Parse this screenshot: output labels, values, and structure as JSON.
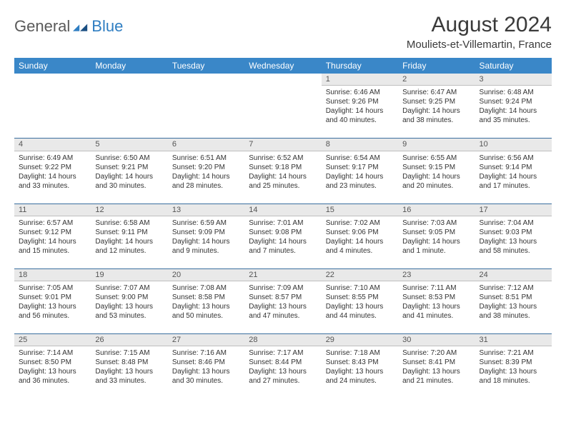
{
  "brand": {
    "part1": "General",
    "part2": "Blue"
  },
  "title": "August 2024",
  "subtitle": "Mouliets-et-Villemartin, France",
  "colors": {
    "header_bg": "#3a87c8",
    "header_text": "#ffffff",
    "daynum_bg": "#e9e9e9",
    "divider": "#3a6f9f",
    "text": "#333333",
    "brand_gray": "#5a5a5a",
    "brand_blue": "#2f7ec2"
  },
  "dayHeaders": [
    "Sunday",
    "Monday",
    "Tuesday",
    "Wednesday",
    "Thursday",
    "Friday",
    "Saturday"
  ],
  "weeks": [
    [
      null,
      null,
      null,
      null,
      {
        "n": "1",
        "sr": "6:46 AM",
        "ss": "9:26 PM",
        "dl": "14 hours and 40 minutes."
      },
      {
        "n": "2",
        "sr": "6:47 AM",
        "ss": "9:25 PM",
        "dl": "14 hours and 38 minutes."
      },
      {
        "n": "3",
        "sr": "6:48 AM",
        "ss": "9:24 PM",
        "dl": "14 hours and 35 minutes."
      }
    ],
    [
      {
        "n": "4",
        "sr": "6:49 AM",
        "ss": "9:22 PM",
        "dl": "14 hours and 33 minutes."
      },
      {
        "n": "5",
        "sr": "6:50 AM",
        "ss": "9:21 PM",
        "dl": "14 hours and 30 minutes."
      },
      {
        "n": "6",
        "sr": "6:51 AM",
        "ss": "9:20 PM",
        "dl": "14 hours and 28 minutes."
      },
      {
        "n": "7",
        "sr": "6:52 AM",
        "ss": "9:18 PM",
        "dl": "14 hours and 25 minutes."
      },
      {
        "n": "8",
        "sr": "6:54 AM",
        "ss": "9:17 PM",
        "dl": "14 hours and 23 minutes."
      },
      {
        "n": "9",
        "sr": "6:55 AM",
        "ss": "9:15 PM",
        "dl": "14 hours and 20 minutes."
      },
      {
        "n": "10",
        "sr": "6:56 AM",
        "ss": "9:14 PM",
        "dl": "14 hours and 17 minutes."
      }
    ],
    [
      {
        "n": "11",
        "sr": "6:57 AM",
        "ss": "9:12 PM",
        "dl": "14 hours and 15 minutes."
      },
      {
        "n": "12",
        "sr": "6:58 AM",
        "ss": "9:11 PM",
        "dl": "14 hours and 12 minutes."
      },
      {
        "n": "13",
        "sr": "6:59 AM",
        "ss": "9:09 PM",
        "dl": "14 hours and 9 minutes."
      },
      {
        "n": "14",
        "sr": "7:01 AM",
        "ss": "9:08 PM",
        "dl": "14 hours and 7 minutes."
      },
      {
        "n": "15",
        "sr": "7:02 AM",
        "ss": "9:06 PM",
        "dl": "14 hours and 4 minutes."
      },
      {
        "n": "16",
        "sr": "7:03 AM",
        "ss": "9:05 PM",
        "dl": "14 hours and 1 minute."
      },
      {
        "n": "17",
        "sr": "7:04 AM",
        "ss": "9:03 PM",
        "dl": "13 hours and 58 minutes."
      }
    ],
    [
      {
        "n": "18",
        "sr": "7:05 AM",
        "ss": "9:01 PM",
        "dl": "13 hours and 56 minutes."
      },
      {
        "n": "19",
        "sr": "7:07 AM",
        "ss": "9:00 PM",
        "dl": "13 hours and 53 minutes."
      },
      {
        "n": "20",
        "sr": "7:08 AM",
        "ss": "8:58 PM",
        "dl": "13 hours and 50 minutes."
      },
      {
        "n": "21",
        "sr": "7:09 AM",
        "ss": "8:57 PM",
        "dl": "13 hours and 47 minutes."
      },
      {
        "n": "22",
        "sr": "7:10 AM",
        "ss": "8:55 PM",
        "dl": "13 hours and 44 minutes."
      },
      {
        "n": "23",
        "sr": "7:11 AM",
        "ss": "8:53 PM",
        "dl": "13 hours and 41 minutes."
      },
      {
        "n": "24",
        "sr": "7:12 AM",
        "ss": "8:51 PM",
        "dl": "13 hours and 38 minutes."
      }
    ],
    [
      {
        "n": "25",
        "sr": "7:14 AM",
        "ss": "8:50 PM",
        "dl": "13 hours and 36 minutes."
      },
      {
        "n": "26",
        "sr": "7:15 AM",
        "ss": "8:48 PM",
        "dl": "13 hours and 33 minutes."
      },
      {
        "n": "27",
        "sr": "7:16 AM",
        "ss": "8:46 PM",
        "dl": "13 hours and 30 minutes."
      },
      {
        "n": "28",
        "sr": "7:17 AM",
        "ss": "8:44 PM",
        "dl": "13 hours and 27 minutes."
      },
      {
        "n": "29",
        "sr": "7:18 AM",
        "ss": "8:43 PM",
        "dl": "13 hours and 24 minutes."
      },
      {
        "n": "30",
        "sr": "7:20 AM",
        "ss": "8:41 PM",
        "dl": "13 hours and 21 minutes."
      },
      {
        "n": "31",
        "sr": "7:21 AM",
        "ss": "8:39 PM",
        "dl": "13 hours and 18 minutes."
      }
    ]
  ],
  "labels": {
    "sunrise": "Sunrise: ",
    "sunset": "Sunset: ",
    "daylight": "Daylight: "
  }
}
